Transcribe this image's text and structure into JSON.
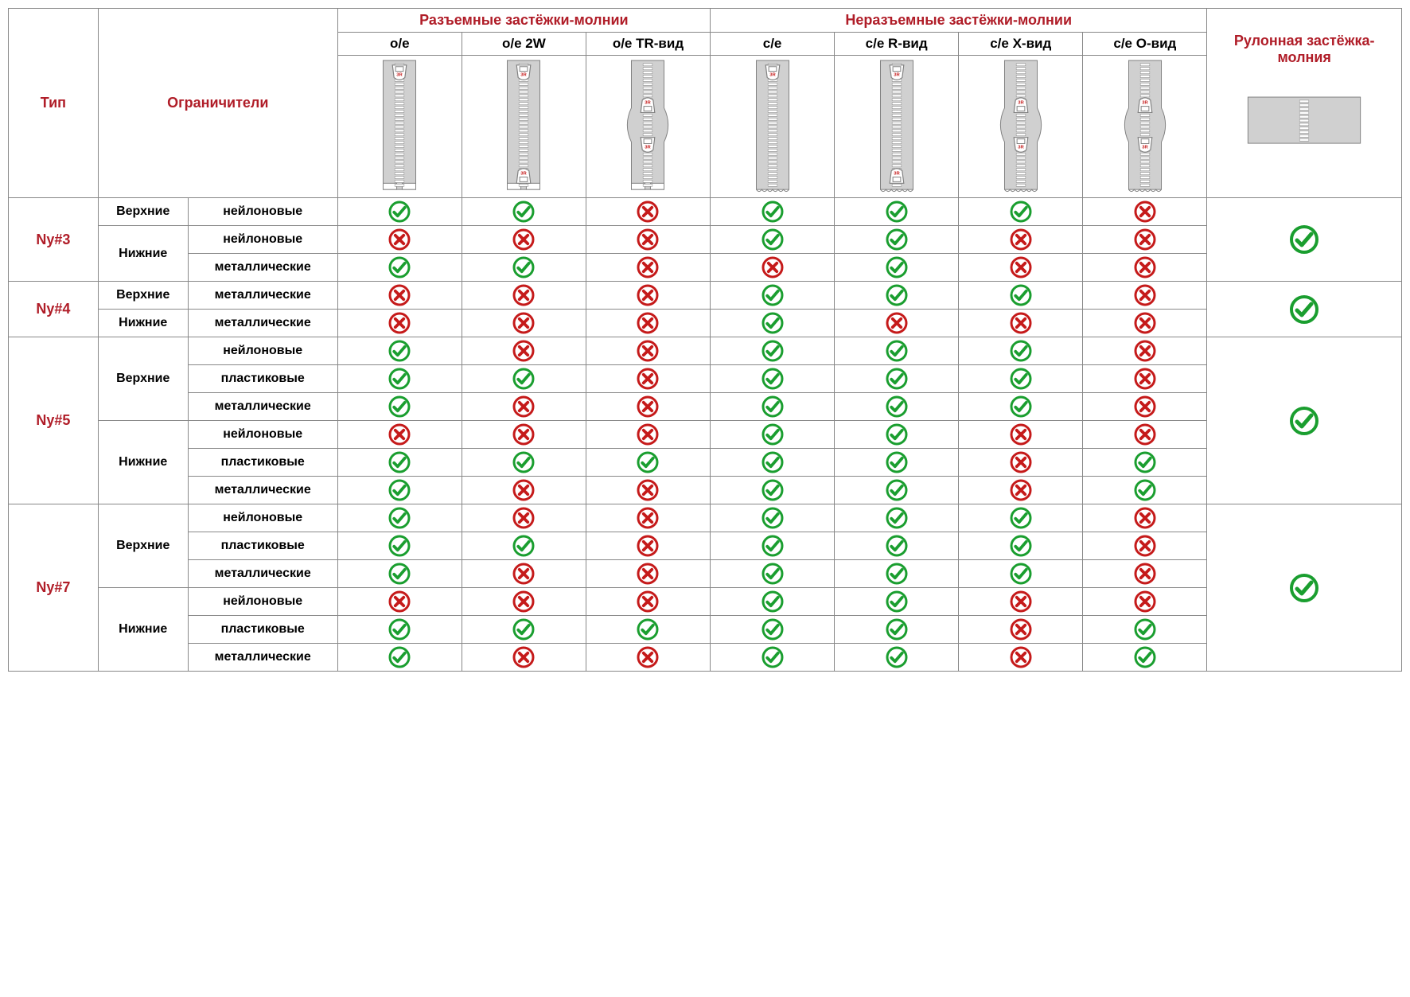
{
  "colors": {
    "red": "#b01d28",
    "green": "#1a9e2f",
    "xred": "#c51a1a",
    "border": "#888888",
    "zipper_fill": "#d0d0d0",
    "zipper_stroke": "#808080"
  },
  "header": {
    "type": "Тип",
    "stops": "Ограничители",
    "sep_group": "Разъемные застёжки-молнии",
    "nonsep_group": "Неразъемные застёжки-молнии",
    "roll": "Рулонная застёжка-молния",
    "cols": [
      "o/e",
      "o/e 2W",
      "o/e TR-вид",
      "c/e",
      "c/e R-вид",
      "c/e X-вид",
      "c/e O-вид"
    ]
  },
  "stop_labels": {
    "top": "Верхние",
    "bottom": "Нижние"
  },
  "materials": {
    "nylon": "нейлоновые",
    "metal": "металлические",
    "plastic": "пластиковые"
  },
  "types": [
    "Ny#3",
    "Ny#4",
    "Ny#5",
    "Ny#7"
  ],
  "data": [
    {
      "type": 0,
      "roll": true,
      "rows": [
        {
          "stop": "top",
          "mat": "nylon",
          "v": [
            true,
            true,
            false,
            true,
            true,
            true,
            false
          ]
        },
        {
          "stop": "bottom",
          "mat": "nylon",
          "v": [
            false,
            false,
            false,
            true,
            true,
            false,
            false
          ]
        },
        {
          "stop": "bottom",
          "mat": "metal",
          "v": [
            true,
            true,
            false,
            false,
            true,
            false,
            false
          ]
        }
      ]
    },
    {
      "type": 1,
      "roll": true,
      "rows": [
        {
          "stop": "top",
          "mat": "metal",
          "v": [
            false,
            false,
            false,
            true,
            true,
            true,
            false
          ]
        },
        {
          "stop": "bottom",
          "mat": "metal",
          "v": [
            false,
            false,
            false,
            true,
            false,
            false,
            false
          ]
        }
      ]
    },
    {
      "type": 2,
      "roll": true,
      "rows": [
        {
          "stop": "top",
          "mat": "nylon",
          "v": [
            true,
            false,
            false,
            true,
            true,
            true,
            false
          ]
        },
        {
          "stop": "top",
          "mat": "plastic",
          "v": [
            true,
            true,
            false,
            true,
            true,
            true,
            false
          ]
        },
        {
          "stop": "top",
          "mat": "metal",
          "v": [
            true,
            false,
            false,
            true,
            true,
            true,
            false
          ]
        },
        {
          "stop": "bottom",
          "mat": "nylon",
          "v": [
            false,
            false,
            false,
            true,
            true,
            false,
            false
          ]
        },
        {
          "stop": "bottom",
          "mat": "plastic",
          "v": [
            true,
            true,
            true,
            true,
            true,
            false,
            true
          ]
        },
        {
          "stop": "bottom",
          "mat": "metal",
          "v": [
            true,
            false,
            false,
            true,
            true,
            false,
            true
          ]
        }
      ]
    },
    {
      "type": 3,
      "roll": true,
      "rows": [
        {
          "stop": "top",
          "mat": "nylon",
          "v": [
            true,
            false,
            false,
            true,
            true,
            true,
            false
          ]
        },
        {
          "stop": "top",
          "mat": "plastic",
          "v": [
            true,
            true,
            false,
            true,
            true,
            true,
            false
          ]
        },
        {
          "stop": "top",
          "mat": "metal",
          "v": [
            true,
            false,
            false,
            true,
            true,
            true,
            false
          ]
        },
        {
          "stop": "bottom",
          "mat": "nylon",
          "v": [
            false,
            false,
            false,
            true,
            true,
            false,
            false
          ]
        },
        {
          "stop": "bottom",
          "mat": "plastic",
          "v": [
            true,
            true,
            true,
            true,
            true,
            false,
            true
          ]
        },
        {
          "stop": "bottom",
          "mat": "metal",
          "v": [
            true,
            false,
            false,
            true,
            true,
            false,
            true
          ]
        }
      ]
    }
  ],
  "zipper_variants": [
    {
      "sliders": 1,
      "open_bottom": true,
      "open_section": false,
      "roll": false
    },
    {
      "sliders": 2,
      "open_bottom": true,
      "open_section": false,
      "roll": false
    },
    {
      "sliders": 2,
      "open_bottom": true,
      "open_section": true,
      "roll": false
    },
    {
      "sliders": 1,
      "open_bottom": false,
      "open_section": false,
      "roll": false
    },
    {
      "sliders": 2,
      "open_bottom": false,
      "open_section": false,
      "roll": false
    },
    {
      "sliders": 2,
      "open_bottom": false,
      "open_section": true,
      "roll": false
    },
    {
      "sliders": 2,
      "open_bottom": false,
      "open_section": true,
      "roll": false
    },
    {
      "sliders": 0,
      "open_bottom": false,
      "open_section": false,
      "roll": true
    }
  ]
}
